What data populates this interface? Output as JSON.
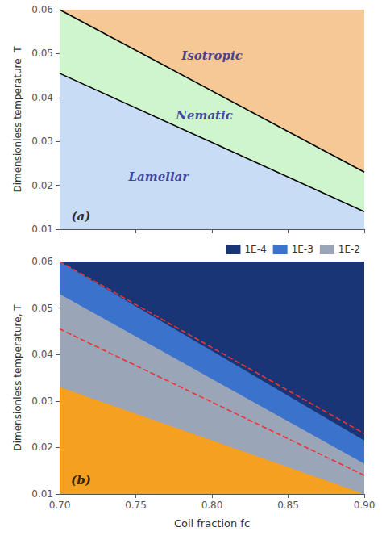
{
  "chart_data": [
    {
      "type": "area",
      "xlim": [
        0.7,
        0.9
      ],
      "ylim": [
        0.01,
        0.06
      ],
      "xticks": [
        {
          "value": 0.7,
          "label": "0.70"
        },
        0.75,
        {
          "value": 0.8,
          "label": "0.80"
        },
        0.85,
        {
          "value": 0.9,
          "label": "0.90"
        }
      ],
      "yticks": [
        0.01,
        0.02,
        0.03,
        0.04,
        0.05,
        0.06
      ],
      "ylabel": "Dimensionless temperature  T",
      "tick_labels": "y",
      "grid": false,
      "series": [
        {
          "type": "background",
          "color": "#f5c896"
        },
        {
          "type": "area",
          "color": "#cff5cc",
          "x": [
            0.7,
            0.9
          ],
          "values": [
            0.06,
            0.023
          ]
        },
        {
          "type": "area",
          "color": "#c8dcf5",
          "x": [
            0.7,
            0.9
          ],
          "values": [
            0.0455,
            0.014
          ]
        },
        {
          "type": "line",
          "color": "#000000",
          "line_style": "solid",
          "x": [
            0.7,
            0.9
          ],
          "values": [
            0.0455,
            0.014
          ]
        },
        {
          "type": "line",
          "color": "#000000",
          "line_style": "solid",
          "x": [
            0.7,
            0.9
          ],
          "values": [
            0.06,
            0.023
          ]
        }
      ],
      "annotations": [
        {
          "text": "Isotropic",
          "x": 0.8,
          "y": 0.0495,
          "color": "#1a1a8c"
        },
        {
          "text": "Nematic",
          "x": 0.795,
          "y": 0.036,
          "color": "#1a1a8c"
        },
        {
          "text": "Lamellar",
          "x": 0.765,
          "y": 0.022,
          "color": "#1a1a8c"
        },
        {
          "text": "(a)",
          "x": 0.714,
          "y": 0.013,
          "color": "#000000"
        }
      ]
    },
    {
      "type": "area",
      "xlim": [
        0.7,
        0.9
      ],
      "ylim": [
        0.01,
        0.06
      ],
      "xticks": [
        {
          "value": 0.7,
          "label": "0.70"
        },
        0.75,
        {
          "value": 0.8,
          "label": "0.80"
        },
        0.85,
        {
          "value": 0.9,
          "label": "0.90"
        }
      ],
      "yticks": [
        0.01,
        0.02,
        0.03,
        0.04,
        0.05,
        0.06
      ],
      "xlabel": "Coil fraction fc",
      "ylabel": "Dimensionless temperature, T",
      "grid": false,
      "legend": "upper right",
      "series": [
        {
          "type": "background",
          "name": "1E-4",
          "color": "#1a3575"
        },
        {
          "type": "area",
          "name": "1E-3",
          "color": "#3a72cc",
          "x": [
            0.7,
            0.9
          ],
          "values": [
            0.06,
            0.0215
          ]
        },
        {
          "type": "area",
          "name": "1E-2",
          "color": "#9aa5b8",
          "x": [
            0.7,
            0.9
          ],
          "values": [
            0.053,
            0.0165
          ]
        },
        {
          "type": "area",
          "color": "#f5a020",
          "x": [
            0.7,
            0.9
          ],
          "values": [
            0.033,
            0.01
          ]
        },
        {
          "type": "line",
          "color": "#ee3333",
          "line_style": "dashed",
          "x": [
            0.7,
            0.9
          ],
          "values": [
            0.0455,
            0.014
          ]
        },
        {
          "type": "line",
          "color": "#ee3333",
          "line_style": "dashed",
          "x": [
            0.7,
            0.9
          ],
          "values": [
            0.06,
            0.023
          ]
        }
      ],
      "annotations": [
        {
          "text": "(b)",
          "x": 0.714,
          "y": 0.013,
          "color": "#000000"
        }
      ]
    }
  ]
}
